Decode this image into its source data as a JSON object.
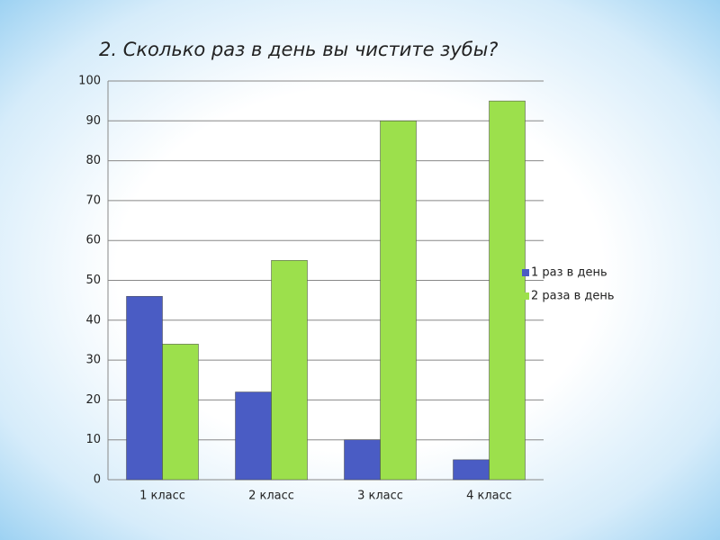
{
  "chart_data": {
    "type": "bar",
    "title": "2. Сколько раз в день вы чистите зубы?",
    "categories": [
      "1 класс",
      "2 класс",
      "3 класс",
      "4 класс"
    ],
    "series": [
      {
        "name": "1 раз в день",
        "color": "#4a5cc4",
        "values": [
          46,
          22,
          10,
          5
        ]
      },
      {
        "name": "2 раза в день",
        "color": "#9ce04c",
        "values": [
          34,
          55,
          90,
          95
        ]
      }
    ],
    "ylim": [
      0,
      100
    ],
    "yticks": [
      0,
      10,
      20,
      30,
      40,
      50,
      60,
      70,
      80,
      90,
      100
    ],
    "grid": true,
    "legend": "right"
  }
}
